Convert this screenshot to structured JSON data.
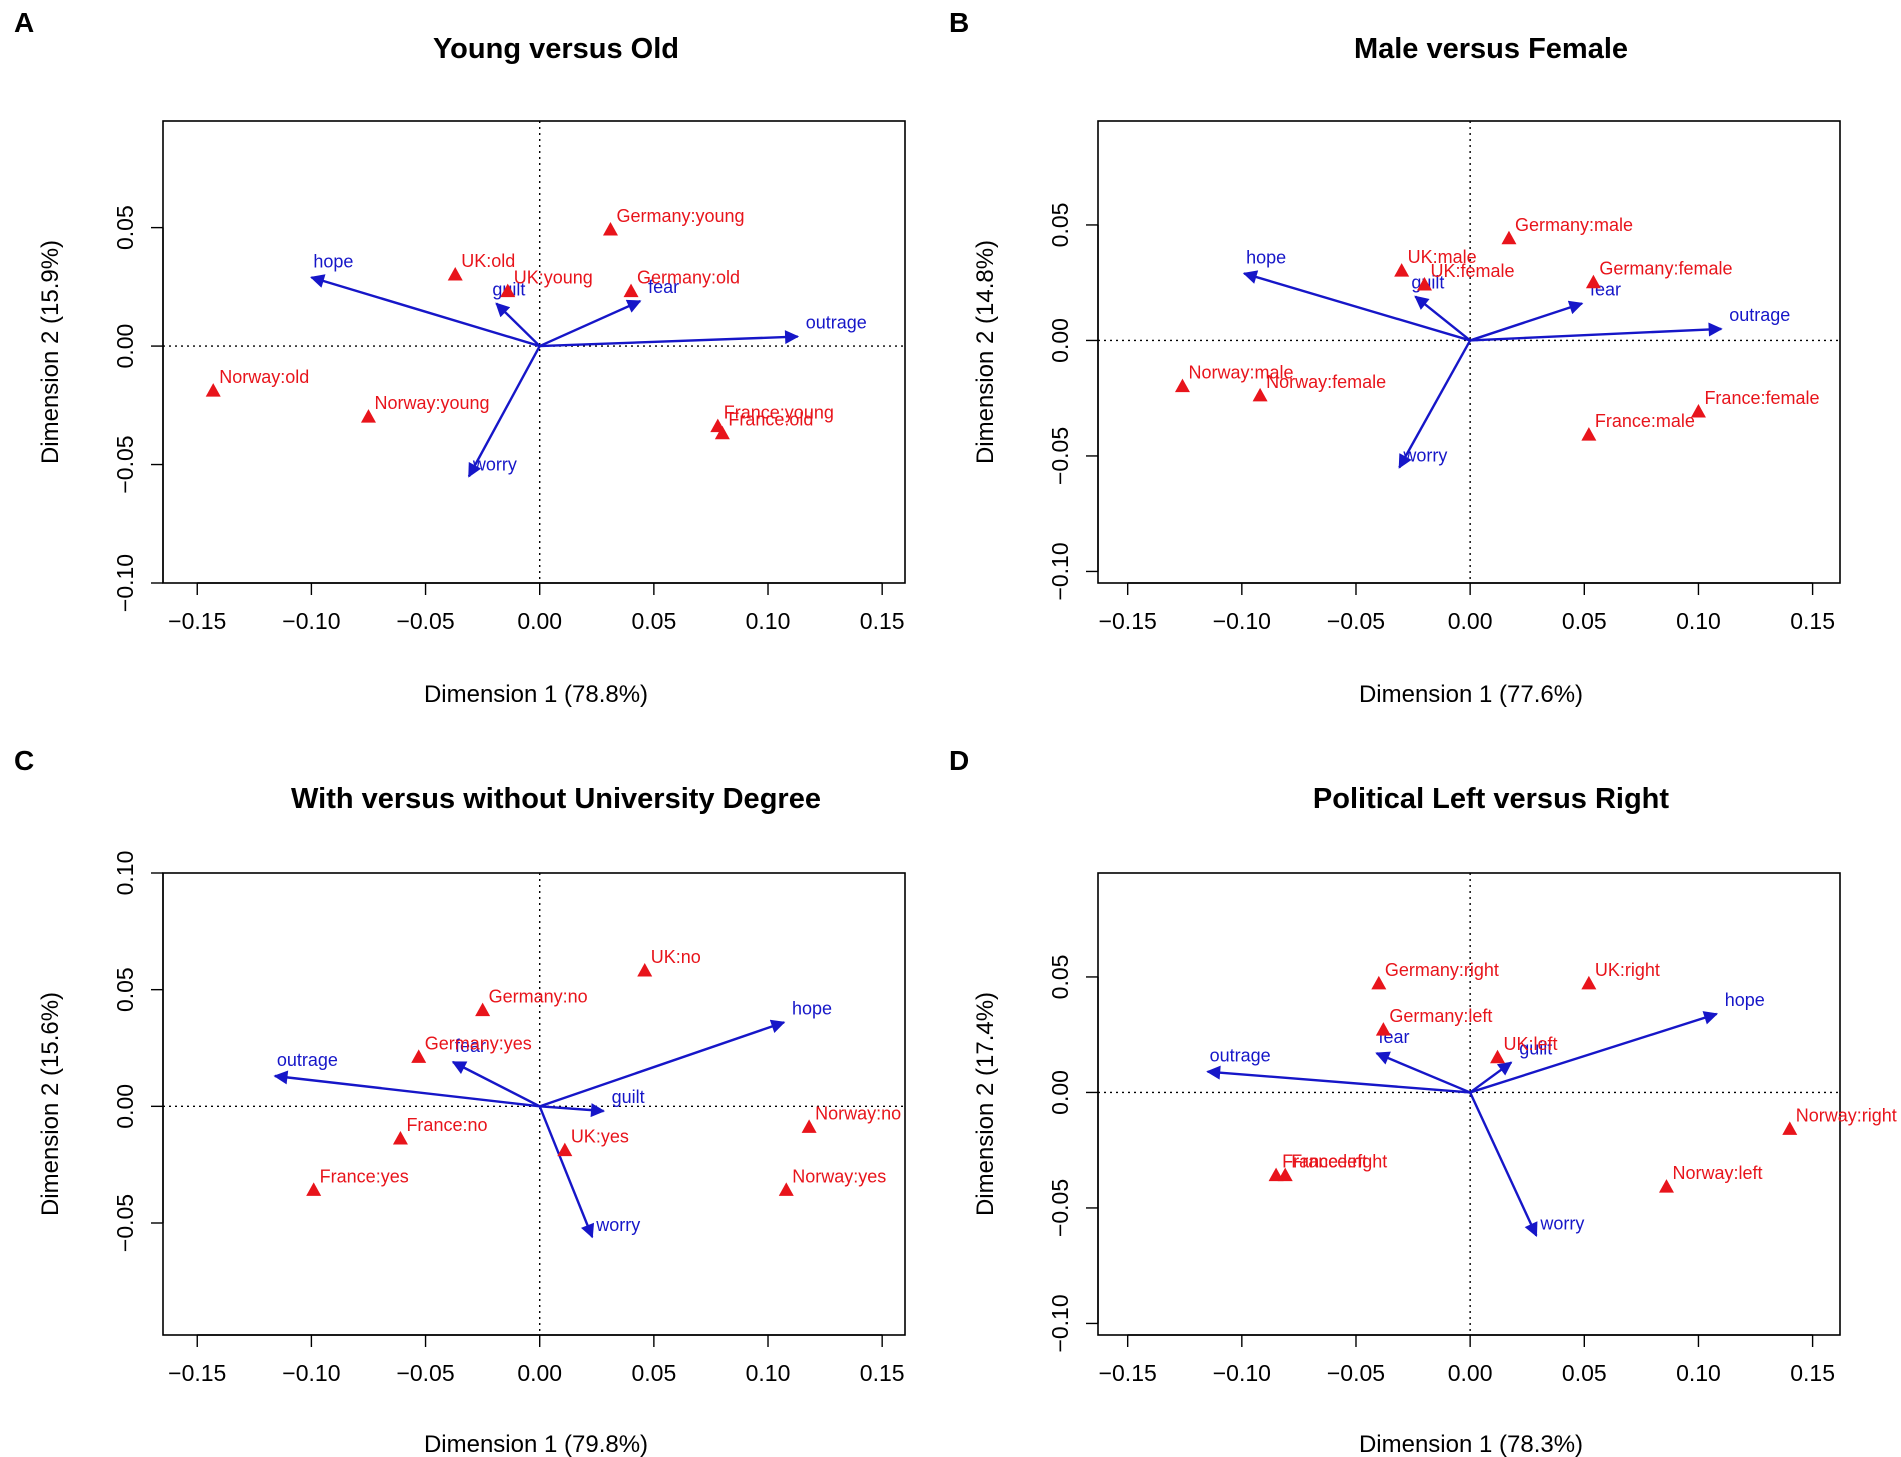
{
  "figure": {
    "panels": [
      "A",
      "B",
      "C",
      "D"
    ]
  },
  "colors": {
    "points": "#e8141b",
    "arrows": "#1616c8",
    "axis": "#000000",
    "background": "#ffffff"
  },
  "chart_data": [
    {
      "panel": "A",
      "type": "scatter",
      "subtype": "correspondence-analysis-biplot",
      "title": "Young versus Old",
      "xlabel": "Dimension 1 (78.8%)",
      "ylabel": "Dimension 2 (15.9%)",
      "xlim": [
        -0.165,
        0.16
      ],
      "ylim": [
        -0.1,
        0.095
      ],
      "xticks": [
        -0.15,
        -0.1,
        -0.05,
        0.0,
        0.05,
        0.1,
        0.15
      ],
      "yticks": [
        -0.1,
        -0.05,
        0.0,
        0.05
      ],
      "xtick_labels": [
        "−0.15",
        "−0.10",
        "−0.05",
        "0.00",
        "0.05",
        "0.10",
        "0.15"
      ],
      "ytick_labels": [
        "−0.10",
        "−0.05",
        "0.00",
        "0.05"
      ],
      "points": [
        {
          "label": "Germany:young",
          "x": 0.031,
          "y": 0.049
        },
        {
          "label": "UK:old",
          "x": -0.037,
          "y": 0.03
        },
        {
          "label": "UK:young",
          "x": -0.014,
          "y": 0.023
        },
        {
          "label": "Germany:old",
          "x": 0.04,
          "y": 0.023
        },
        {
          "label": "Norway:old",
          "x": -0.143,
          "y": -0.019
        },
        {
          "label": "Norway:young",
          "x": -0.075,
          "y": -0.03
        },
        {
          "label": "France:young",
          "x": 0.078,
          "y": -0.034
        },
        {
          "label": "France:old",
          "x": 0.08,
          "y": -0.037
        }
      ],
      "arrows": [
        {
          "label": "hope",
          "x": -0.1,
          "y": 0.029
        },
        {
          "label": "guilt",
          "x": -0.019,
          "y": 0.018
        },
        {
          "label": "fear",
          "x": 0.044,
          "y": 0.019
        },
        {
          "label": "outrage",
          "x": 0.113,
          "y": 0.004
        },
        {
          "label": "worry",
          "x": -0.031,
          "y": -0.055
        }
      ]
    },
    {
      "panel": "B",
      "type": "scatter",
      "subtype": "correspondence-analysis-biplot",
      "title": "Male versus Female",
      "xlabel": "Dimension 1 (77.6%)",
      "ylabel": "Dimension 2 (14.8%)",
      "xlim": [
        -0.163,
        0.162
      ],
      "ylim": [
        -0.105,
        0.095
      ],
      "xticks": [
        -0.15,
        -0.1,
        -0.05,
        0.0,
        0.05,
        0.1,
        0.15
      ],
      "yticks": [
        -0.1,
        -0.05,
        0.0,
        0.05
      ],
      "xtick_labels": [
        "−0.15",
        "−0.10",
        "−0.05",
        "0.00",
        "0.05",
        "0.10",
        "0.15"
      ],
      "ytick_labels": [
        "−0.10",
        "−0.05",
        "0.00",
        "0.05"
      ],
      "points": [
        {
          "label": "Germany:male",
          "x": 0.017,
          "y": 0.044
        },
        {
          "label": "UK:male",
          "x": -0.03,
          "y": 0.03
        },
        {
          "label": "UK:female",
          "x": -0.02,
          "y": 0.024
        },
        {
          "label": "Germany:female",
          "x": 0.054,
          "y": 0.025
        },
        {
          "label": "Norway:male",
          "x": -0.126,
          "y": -0.02
        },
        {
          "label": "Norway:female",
          "x": -0.092,
          "y": -0.024
        },
        {
          "label": "France:female",
          "x": 0.1,
          "y": -0.031
        },
        {
          "label": "France:male",
          "x": 0.052,
          "y": -0.041
        }
      ],
      "arrows": [
        {
          "label": "hope",
          "x": -0.099,
          "y": 0.029
        },
        {
          "label": "guilt",
          "x": -0.024,
          "y": 0.019
        },
        {
          "label": "fear",
          "x": 0.049,
          "y": 0.016
        },
        {
          "label": "outrage",
          "x": 0.11,
          "y": 0.005
        },
        {
          "label": "worry",
          "x": -0.031,
          "y": -0.055
        }
      ]
    },
    {
      "panel": "C",
      "type": "scatter",
      "subtype": "correspondence-analysis-biplot",
      "title": "With versus without University Degree",
      "xlabel": "Dimension 1 (79.8%)",
      "ylabel": "Dimension 2 (15.6%)",
      "xlim": [
        -0.165,
        0.16
      ],
      "ylim": [
        -0.098,
        0.1
      ],
      "xticks": [
        -0.15,
        -0.1,
        -0.05,
        0.0,
        0.05,
        0.1,
        0.15
      ],
      "yticks": [
        -0.05,
        0.0,
        0.05,
        0.1
      ],
      "xtick_labels": [
        "−0.15",
        "−0.10",
        "−0.05",
        "0.00",
        "0.05",
        "0.10",
        "0.15"
      ],
      "ytick_labels": [
        "−0.05",
        "0.00",
        "0.05",
        "0.10"
      ],
      "points": [
        {
          "label": "UK:no",
          "x": 0.046,
          "y": 0.058
        },
        {
          "label": "Germany:no",
          "x": -0.025,
          "y": 0.041
        },
        {
          "label": "Germany:yes",
          "x": -0.053,
          "y": 0.021
        },
        {
          "label": "France:no",
          "x": -0.061,
          "y": -0.014
        },
        {
          "label": "France:yes",
          "x": -0.099,
          "y": -0.036
        },
        {
          "label": "UK:yes",
          "x": 0.011,
          "y": -0.019
        },
        {
          "label": "Norway:no",
          "x": 0.118,
          "y": -0.009
        },
        {
          "label": "Norway:yes",
          "x": 0.108,
          "y": -0.036
        }
      ],
      "arrows": [
        {
          "label": "hope",
          "x": 0.107,
          "y": 0.036
        },
        {
          "label": "outrage",
          "x": -0.116,
          "y": 0.013
        },
        {
          "label": "fear",
          "x": -0.038,
          "y": 0.019
        },
        {
          "label": "guilt",
          "x": 0.028,
          "y": -0.002
        },
        {
          "label": "worry",
          "x": 0.023,
          "y": -0.056
        }
      ]
    },
    {
      "panel": "D",
      "type": "scatter",
      "subtype": "correspondence-analysis-biplot",
      "title": "Political Left versus Right",
      "xlabel": "Dimension 1 (78.3%)",
      "ylabel": "Dimension 2 (17.4%)",
      "xlim": [
        -0.163,
        0.162
      ],
      "ylim": [
        -0.105,
        0.095
      ],
      "xticks": [
        -0.15,
        -0.1,
        -0.05,
        0.0,
        0.05,
        0.1,
        0.15
      ],
      "yticks": [
        -0.1,
        -0.05,
        0.0,
        0.05
      ],
      "xtick_labels": [
        "−0.15",
        "−0.10",
        "−0.05",
        "0.00",
        "0.05",
        "0.10",
        "0.15"
      ],
      "ytick_labels": [
        "−0.10",
        "−0.05",
        "0.00",
        "0.05"
      ],
      "points": [
        {
          "label": "Germany:right",
          "x": -0.04,
          "y": 0.047
        },
        {
          "label": "UK:right",
          "x": 0.052,
          "y": 0.047
        },
        {
          "label": "Germany:left",
          "x": -0.038,
          "y": 0.027
        },
        {
          "label": "UK:left",
          "x": 0.012,
          "y": 0.015
        },
        {
          "label": "France:left",
          "x": -0.085,
          "y": -0.036
        },
        {
          "label": "France:right",
          "x": -0.081,
          "y": -0.036
        },
        {
          "label": "Norway:right",
          "x": 0.14,
          "y": -0.016
        },
        {
          "label": "Norway:left",
          "x": 0.086,
          "y": -0.041
        }
      ],
      "arrows": [
        {
          "label": "hope",
          "x": 0.108,
          "y": 0.034
        },
        {
          "label": "outrage",
          "x": -0.115,
          "y": 0.009
        },
        {
          "label": "fear",
          "x": -0.041,
          "y": 0.017
        },
        {
          "label": "guilt",
          "x": 0.018,
          "y": 0.013
        },
        {
          "label": "worry",
          "x": 0.029,
          "y": -0.062
        }
      ]
    }
  ]
}
